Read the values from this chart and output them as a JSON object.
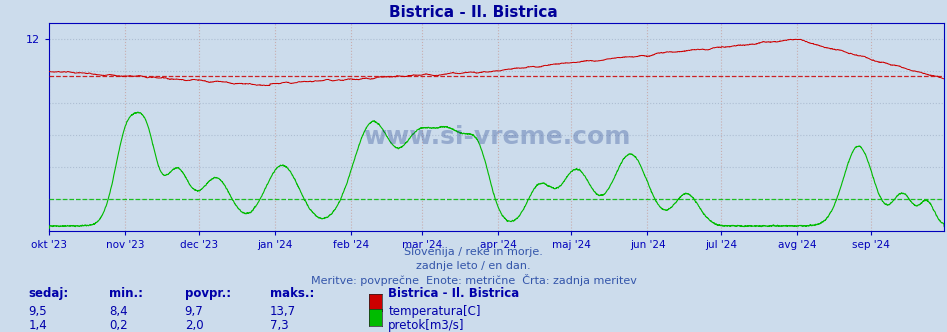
{
  "title": "Bistrica - Il. Bistrica",
  "title_color": "#000099",
  "bg_color": "#ccdcec",
  "plot_bg_color": "#ccdcec",
  "grid_color_main": "#aabbd0",
  "grid_color_v": "#c09090",
  "axis_color": "#0000bb",
  "temp_color": "#cc0000",
  "flow_color": "#00bb00",
  "temp_avg_value": 9.7,
  "flow_avg_value": 2.0,
  "ylim": [
    0,
    13
  ],
  "ytick_pos": [
    12
  ],
  "ytick_labels": [
    "12"
  ],
  "month_labels": [
    "okt '23",
    "nov '23",
    "dec '23",
    "jan '24",
    "feb '24",
    "mar '24",
    "apr '24",
    "maj '24",
    "jun '24",
    "jul '24",
    "avg '24",
    "sep '24"
  ],
  "month_days": [
    0,
    31,
    61,
    92,
    123,
    152,
    183,
    213,
    244,
    274,
    305,
    335
  ],
  "n_days": 365,
  "subtitle1": "Slovenija / reke in morje.",
  "subtitle2": "zadnje leto / en dan.",
  "subtitle3": "Meritve: povprečne  Enote: metrične  Črta: zadnja meritev",
  "subtitle_color": "#3355aa",
  "stats_color": "#0000aa",
  "sedaj_temp": "9,5",
  "min_temp": "8,4",
  "povpr_temp": "9,7",
  "maks_temp": "13,7",
  "sedaj_flow": "1,4",
  "min_flow": "0,2",
  "povpr_flow": "2,0",
  "maks_flow": "7,3",
  "legend_label_temp": "temperatura[C]",
  "legend_label_flow": "pretok[m3/s]",
  "legend_station": "Bistrica - Il. Bistrica",
  "watermark": "www.si-vreme.com",
  "watermark_color": "#1a3a8a"
}
